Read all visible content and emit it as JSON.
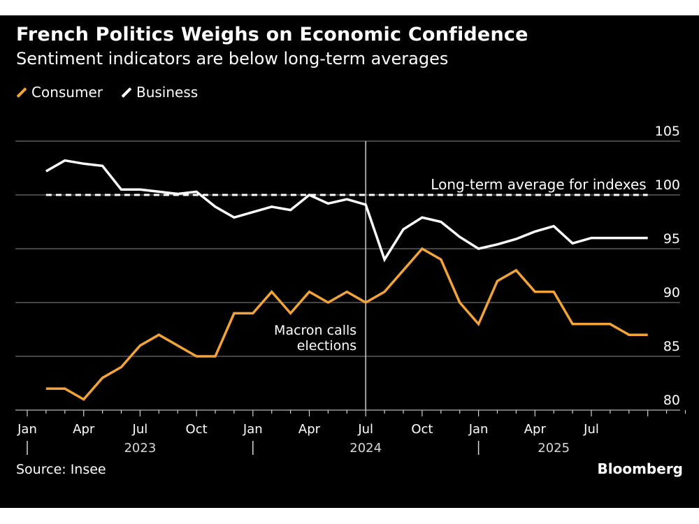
{
  "header": {
    "title": "French Politics Weighs on Economic Confidence",
    "subtitle": "Sentiment indicators are below long-term averages"
  },
  "footer": {
    "source": "Source: Insee",
    "brand": "Bloomberg"
  },
  "colors": {
    "background": "#000000",
    "consumer": "#F2A33A",
    "business": "#FFFFFF",
    "grid": "#5a5a5a"
  },
  "chart_data": {
    "type": "line",
    "title": "French Politics Weighs on Economic Confidence",
    "subtitle": "Sentiment indicators are below long-term averages",
    "xlabel": "",
    "ylabel": "",
    "ylim": [
      80,
      105
    ],
    "yticks": [
      80,
      85,
      90,
      95,
      100,
      105
    ],
    "y_axis_side": "right",
    "grid": true,
    "legend_position": "top-left",
    "x_start": "2023-01",
    "x_end": "2025-12",
    "xtick_labels": [
      {
        "month": "2023-01",
        "label": "Jan"
      },
      {
        "month": "2023-04",
        "label": "Apr"
      },
      {
        "month": "2023-07",
        "label": "Jul"
      },
      {
        "month": "2023-10",
        "label": "Oct"
      },
      {
        "month": "2024-01",
        "label": "Jan"
      },
      {
        "month": "2024-04",
        "label": "Apr"
      },
      {
        "month": "2024-07",
        "label": "Jul"
      },
      {
        "month": "2024-10",
        "label": "Oct"
      },
      {
        "month": "2025-01",
        "label": "Jan"
      },
      {
        "month": "2025-04",
        "label": "Apr"
      },
      {
        "month": "2025-07",
        "label": "Jul"
      }
    ],
    "year_labels": [
      {
        "month": "2023-07",
        "label": "2023"
      },
      {
        "month": "2024-07",
        "label": "2024"
      },
      {
        "month": "2025-05",
        "label": "2025"
      }
    ],
    "year_separators": [
      "2023-01",
      "2024-01",
      "2025-01"
    ],
    "x": [
      "2023-02",
      "2023-03",
      "2023-04",
      "2023-05",
      "2023-06",
      "2023-07",
      "2023-08",
      "2023-09",
      "2023-10",
      "2023-11",
      "2023-12",
      "2024-01",
      "2024-02",
      "2024-03",
      "2024-04",
      "2024-05",
      "2024-06",
      "2024-07",
      "2024-08",
      "2024-09",
      "2024-10",
      "2024-11",
      "2024-12",
      "2025-01",
      "2025-02",
      "2025-03",
      "2025-04",
      "2025-05",
      "2025-06",
      "2025-07",
      "2025-08",
      "2025-09",
      "2025-10"
    ],
    "series": [
      {
        "name": "Consumer",
        "color": "#F2A33A",
        "values": [
          82,
          82,
          81,
          83,
          84,
          86,
          87,
          86,
          85,
          85,
          89,
          89,
          91,
          89,
          91,
          90,
          91,
          90,
          91,
          93,
          95,
          94,
          90,
          88,
          92,
          93,
          91,
          91,
          88,
          88,
          88,
          87,
          87
        ]
      },
      {
        "name": "Business",
        "color": "#FFFFFF",
        "values": [
          102.2,
          103.2,
          102.9,
          102.7,
          100.5,
          100.5,
          100.3,
          100.1,
          100.3,
          98.9,
          97.9,
          98.4,
          98.9,
          98.6,
          100.0,
          99.2,
          99.6,
          99.1,
          94.0,
          96.8,
          97.9,
          97.5,
          96.1,
          95.0,
          95.4,
          95.9,
          96.6,
          97.1,
          95.5,
          96.0,
          96.0,
          96.0,
          96.0
        ]
      }
    ],
    "reference_line": {
      "value": 100,
      "label": "Long-term average for indexes",
      "x_start": "2023-02",
      "x_end": "2025-10",
      "style": "dashed"
    },
    "annotations": [
      {
        "month": "2024-07",
        "label_lines": [
          "Macron calls",
          "elections"
        ],
        "type": "vertical-line"
      }
    ]
  }
}
